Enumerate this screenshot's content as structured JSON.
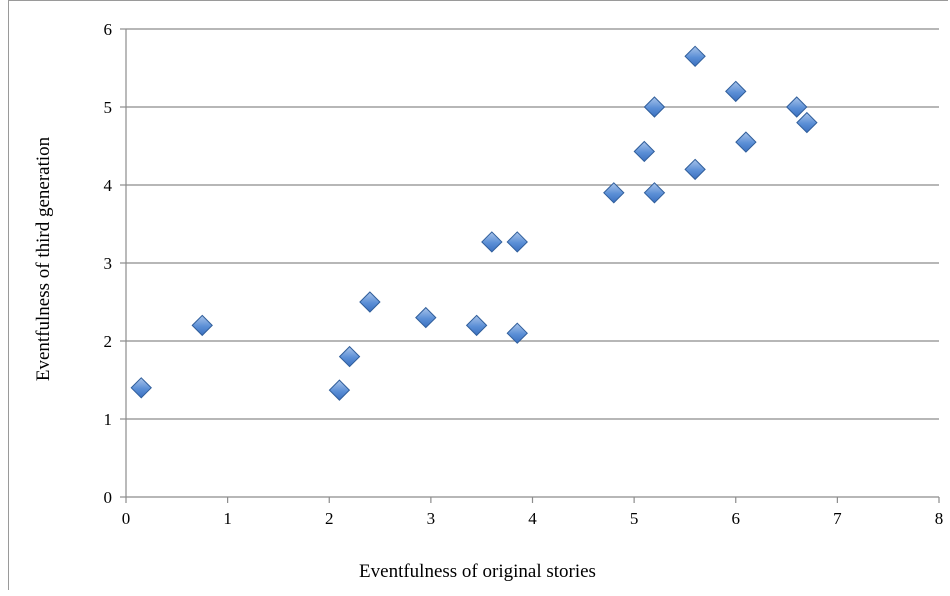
{
  "chart_data": {
    "type": "scatter",
    "title": "",
    "xlabel": "Eventfulness of original stories",
    "ylabel": "Eventfulness of third generation",
    "xlim": [
      0,
      8
    ],
    "ylim": [
      0,
      6
    ],
    "x_ticks": [
      0,
      1,
      2,
      3,
      4,
      5,
      6,
      7,
      8
    ],
    "y_ticks": [
      0,
      1,
      2,
      3,
      4,
      5,
      6
    ],
    "grid": "horizontal",
    "legend": "none",
    "marker": "diamond",
    "marker_color": "#4f81bd",
    "points": [
      {
        "x": 0.15,
        "y": 1.4
      },
      {
        "x": 0.75,
        "y": 2.2
      },
      {
        "x": 2.1,
        "y": 1.37
      },
      {
        "x": 2.2,
        "y": 1.8
      },
      {
        "x": 2.4,
        "y": 2.5
      },
      {
        "x": 2.95,
        "y": 2.3
      },
      {
        "x": 3.45,
        "y": 2.2
      },
      {
        "x": 3.6,
        "y": 3.27
      },
      {
        "x": 3.85,
        "y": 3.27
      },
      {
        "x": 3.85,
        "y": 2.1
      },
      {
        "x": 4.8,
        "y": 3.9
      },
      {
        "x": 5.1,
        "y": 4.43
      },
      {
        "x": 5.2,
        "y": 5.0
      },
      {
        "x": 5.2,
        "y": 3.9
      },
      {
        "x": 5.6,
        "y": 5.65
      },
      {
        "x": 5.6,
        "y": 4.2
      },
      {
        "x": 6.0,
        "y": 5.2
      },
      {
        "x": 6.1,
        "y": 4.55
      },
      {
        "x": 6.6,
        "y": 5.0
      },
      {
        "x": 6.7,
        "y": 4.8
      }
    ]
  }
}
